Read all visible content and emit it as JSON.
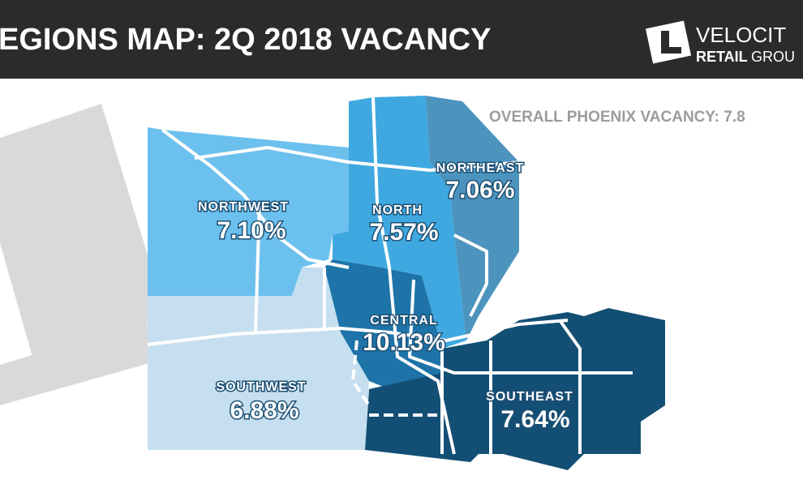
{
  "header": {
    "title": "EGIONS MAP: 2Q 2018 VACANCY",
    "logo_top": "VELOCIT",
    "logo_bottom_bold": "RETAIL",
    "logo_bottom": "GROU"
  },
  "overall": "OVERALL PHOENIX VACANCY: 7.8",
  "regions": [
    {
      "name": "NORTHWEST",
      "label": "7.10%"
    },
    {
      "name": "NORTH",
      "label": "7.57%"
    },
    {
      "name": "NORTHEAST",
      "label": "7.06%"
    },
    {
      "name": "CENTRAL",
      "label": "10.13%"
    },
    {
      "name": "SOUTHWEST",
      "label": "6.88%"
    },
    {
      "name": "SOUTHEAST",
      "label": "7.64%"
    }
  ]
}
